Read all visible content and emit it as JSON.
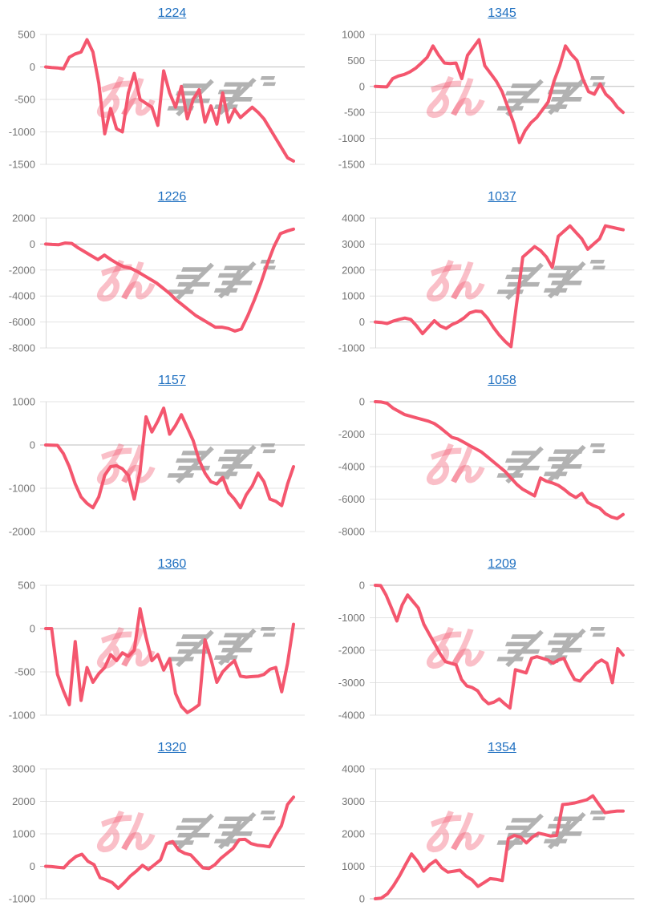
{
  "page": {
    "background": "#ffffff",
    "columns": 2,
    "rows": 5
  },
  "style": {
    "line_color": "#f4566e",
    "title_color": "#1e6fc0",
    "grid_color": "#e3e3e3",
    "baseline_color": "#bdbdbd",
    "axis_line_color": "#d9d9d9",
    "axis_label_color": "#757575"
  },
  "watermark": {
    "description": "stylized pink-and-gray speed-logo watermark centered in each plot",
    "pink": "#f3586e",
    "pink_opacity": 0.38,
    "gray": "#a5a5a5",
    "gray_opacity": 0.85
  },
  "layout_hints": {
    "grid": "on",
    "legend": "none",
    "x_axis_labels": "hidden"
  },
  "chart_data": [
    {
      "type": "line",
      "title": "1224",
      "ylim": [
        -1500,
        500
      ],
      "yticks": [
        500,
        0,
        -500,
        -1000,
        -1500
      ],
      "values": [
        0,
        -10,
        -15,
        -30,
        150,
        200,
        230,
        420,
        230,
        -250,
        -1030,
        -640,
        -950,
        -1000,
        -400,
        -100,
        -500,
        -560,
        -620,
        -900,
        -60,
        -400,
        -620,
        -300,
        -800,
        -500,
        -350,
        -850,
        -600,
        -880,
        -400,
        -850,
        -650,
        -780,
        -700,
        -620,
        -700,
        -800,
        -950,
        -1100,
        -1250,
        -1400,
        -1450
      ]
    },
    {
      "type": "line",
      "title": "1345",
      "ylim": [
        -1500,
        1000
      ],
      "yticks": [
        1000,
        500,
        0,
        -500,
        -1000,
        -1500
      ],
      "values": [
        0,
        -5,
        -10,
        150,
        200,
        230,
        280,
        350,
        450,
        560,
        780,
        600,
        450,
        440,
        450,
        150,
        600,
        750,
        900,
        400,
        250,
        100,
        -100,
        -400,
        -700,
        -1080,
        -850,
        -700,
        -600,
        -450,
        -300,
        100,
        400,
        780,
        620,
        500,
        150,
        -100,
        -150,
        50,
        -150,
        -250,
        -400,
        -500
      ]
    },
    {
      "type": "line",
      "title": "1226",
      "ylim": [
        -8000,
        2000
      ],
      "yticks": [
        2000,
        0,
        -2000,
        -4000,
        -6000,
        -8000
      ],
      "values": [
        0,
        -30,
        -50,
        80,
        50,
        -300,
        -600,
        -900,
        -1200,
        -850,
        -1200,
        -1500,
        -1750,
        -1850,
        -2100,
        -2400,
        -2700,
        -3000,
        -3400,
        -3800,
        -4300,
        -4700,
        -5100,
        -5500,
        -5800,
        -6100,
        -6400,
        -6400,
        -6500,
        -6700,
        -6550,
        -5500,
        -4300,
        -3000,
        -1500,
        -200,
        800,
        1000,
        1150
      ]
    },
    {
      "type": "line",
      "title": "1037",
      "ylim": [
        -1000,
        4000
      ],
      "yticks": [
        4000,
        3000,
        2000,
        1000,
        0,
        -1000
      ],
      "values": [
        0,
        -20,
        -60,
        30,
        100,
        150,
        100,
        -150,
        -450,
        -200,
        50,
        -150,
        -250,
        -100,
        0,
        150,
        350,
        420,
        400,
        150,
        -200,
        -500,
        -750,
        -950,
        800,
        2500,
        2700,
        2900,
        2750,
        2500,
        2100,
        3300,
        3500,
        3700,
        3450,
        3200,
        2800,
        3000,
        3200,
        3700,
        3650,
        3600,
        3550
      ]
    },
    {
      "type": "line",
      "title": "1157",
      "ylim": [
        -2000,
        1000
      ],
      "yticks": [
        1000,
        0,
        -1000,
        -2000
      ],
      "values": [
        0,
        -5,
        -10,
        -200,
        -500,
        -900,
        -1200,
        -1350,
        -1450,
        -1200,
        -700,
        -500,
        -480,
        -550,
        -700,
        -1250,
        -600,
        650,
        300,
        550,
        850,
        250,
        450,
        700,
        400,
        100,
        -350,
        -650,
        -850,
        -900,
        -750,
        -1100,
        -1250,
        -1450,
        -1150,
        -950,
        -650,
        -850,
        -1250,
        -1300,
        -1400,
        -900,
        -500
      ]
    },
    {
      "type": "line",
      "title": "1058",
      "ylim": [
        -8000,
        0
      ],
      "yticks": [
        0,
        -2000,
        -4000,
        -6000,
        -8000
      ],
      "values": [
        0,
        -20,
        -100,
        -400,
        -600,
        -800,
        -900,
        -1000,
        -1100,
        -1200,
        -1350,
        -1600,
        -1900,
        -2200,
        -2300,
        -2500,
        -2700,
        -2900,
        -3100,
        -3400,
        -3700,
        -4000,
        -4300,
        -4700,
        -5100,
        -5400,
        -5600,
        -5800,
        -4700,
        -4900,
        -5000,
        -5150,
        -5400,
        -5700,
        -5900,
        -5650,
        -6200,
        -6400,
        -6550,
        -6900,
        -7100,
        -7200,
        -6950
      ]
    },
    {
      "type": "line",
      "title": "1360",
      "ylim": [
        -1000,
        500
      ],
      "yticks": [
        500,
        0,
        -500,
        -1000
      ],
      "values": [
        0,
        0,
        -530,
        -720,
        -880,
        -150,
        -830,
        -450,
        -620,
        -520,
        -450,
        -300,
        -370,
        -280,
        -320,
        -250,
        230,
        -100,
        -370,
        -300,
        -480,
        -350,
        -750,
        -900,
        -970,
        -930,
        -880,
        -130,
        -350,
        -620,
        -500,
        -430,
        -370,
        -550,
        -560,
        -555,
        -550,
        -530,
        -470,
        -450,
        -730,
        -400,
        50
      ]
    },
    {
      "type": "line",
      "title": "1209",
      "ylim": [
        -4000,
        0
      ],
      "yticks": [
        0,
        -1000,
        -2000,
        -3000,
        -4000
      ],
      "values": [
        0,
        -10,
        -300,
        -700,
        -1100,
        -600,
        -300,
        -500,
        -700,
        -1200,
        -1500,
        -1800,
        -2100,
        -2350,
        -2400,
        -2450,
        -2900,
        -3100,
        -3150,
        -3250,
        -3500,
        -3650,
        -3600,
        -3500,
        -3650,
        -3780,
        -2600,
        -2650,
        -2700,
        -2250,
        -2200,
        -2250,
        -2300,
        -2400,
        -2300,
        -2250,
        -2600,
        -2900,
        -2950,
        -2750,
        -2600,
        -2400,
        -2300,
        -2400,
        -3000,
        -1950,
        -2150
      ]
    },
    {
      "type": "line",
      "title": "1320",
      "ylim": [
        -1000,
        3000
      ],
      "yticks": [
        3000,
        2000,
        1000,
        0,
        -1000
      ],
      "values": [
        0,
        -10,
        -30,
        -50,
        150,
        300,
        370,
        150,
        50,
        -350,
        -420,
        -500,
        -680,
        -500,
        -300,
        -150,
        30,
        -100,
        50,
        200,
        700,
        760,
        500,
        400,
        350,
        150,
        -50,
        -70,
        50,
        250,
        400,
        550,
        820,
        830,
        700,
        650,
        630,
        600,
        950,
        1250,
        1900,
        2130
      ]
    },
    {
      "type": "line",
      "title": "1354",
      "ylim": [
        0,
        4000
      ],
      "yticks": [
        4000,
        3000,
        2000,
        1000,
        0
      ],
      "values": [
        0,
        20,
        150,
        400,
        700,
        1050,
        1380,
        1150,
        850,
        1050,
        1180,
        950,
        820,
        850,
        880,
        700,
        580,
        380,
        500,
        620,
        600,
        560,
        1850,
        1950,
        1900,
        1720,
        1900,
        2020,
        1980,
        1930,
        1950,
        2900,
        2920,
        2950,
        3000,
        3050,
        3170,
        2900,
        2650,
        2680,
        2700,
        2700
      ]
    }
  ]
}
